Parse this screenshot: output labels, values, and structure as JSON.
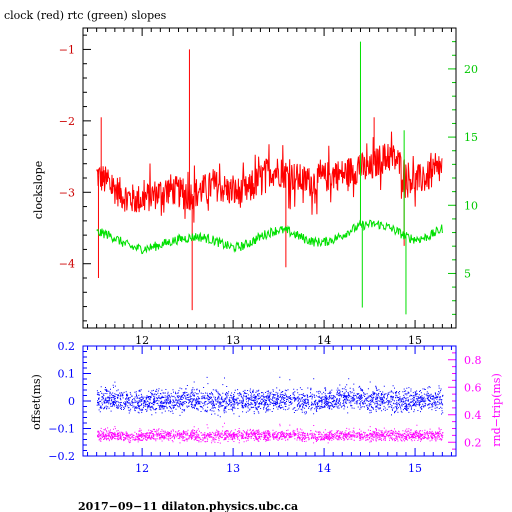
{
  "chart_data": [
    {
      "type": "line",
      "title": "clock (red) rtc (green) slopes",
      "xlabel": "",
      "ylabel": "clockslope",
      "xlim": [
        11.35,
        15.45
      ],
      "ylim": [
        -4.9,
        -0.7
      ],
      "ylim_right": [
        1.0,
        23.0
      ],
      "x_ticks": [
        12,
        13,
        14,
        15
      ],
      "x_tick_labels": [
        "12",
        "13",
        "14",
        "15"
      ],
      "y_ticks": [
        -4,
        -3,
        -2,
        -1
      ],
      "y_tick_labels": [
        "−4",
        "−3",
        "−2",
        "−1"
      ],
      "y_ticks_right": [
        5,
        10,
        15,
        20
      ],
      "y_tick_labels_right": [
        "5",
        "10",
        "15",
        "20"
      ],
      "colors": {
        "frame": "#000000",
        "clock": "#ff0000",
        "rtc": "#00e000",
        "right_axis": "#00c800"
      },
      "series": [
        {
          "name": "clock",
          "axis": "left",
          "x": [
            11.5,
            11.6,
            11.7,
            11.8,
            11.9,
            12.0,
            12.1,
            12.2,
            12.3,
            12.4,
            12.5,
            12.6,
            12.7,
            12.8,
            12.9,
            13.0,
            13.1,
            13.2,
            13.3,
            13.4,
            13.5,
            13.6,
            13.7,
            13.8,
            13.9,
            14.0,
            14.1,
            14.2,
            14.3,
            14.4,
            14.5,
            14.6,
            14.7,
            14.8,
            14.9,
            15.0,
            15.1,
            15.2,
            15.3
          ],
          "y": [
            -2.75,
            -2.85,
            -2.95,
            -3.05,
            -3.1,
            -3.1,
            -3.05,
            -3.0,
            -2.95,
            -3.0,
            -3.05,
            -3.0,
            -2.95,
            -2.9,
            -2.95,
            -3.0,
            -3.0,
            -2.95,
            -2.8,
            -2.7,
            -2.7,
            -2.75,
            -2.8,
            -2.85,
            -2.85,
            -2.8,
            -2.75,
            -2.75,
            -2.7,
            -2.65,
            -2.7,
            -2.55,
            -2.5,
            -2.55,
            -2.75,
            -2.85,
            -2.8,
            -2.75,
            -2.65
          ],
          "spikes": [
            {
              "x": 11.52,
              "y": -4.2
            },
            {
              "x": 11.55,
              "y": -1.95
            },
            {
              "x": 12.52,
              "y": -1.0
            },
            {
              "x": 12.55,
              "y": -4.65
            },
            {
              "x": 13.58,
              "y": -4.05
            },
            {
              "x": 14.55,
              "y": -1.95
            },
            {
              "x": 14.88,
              "y": -3.75
            }
          ]
        },
        {
          "name": "rtc",
          "axis": "right",
          "x": [
            11.5,
            11.6,
            11.7,
            11.8,
            11.9,
            12.0,
            12.1,
            12.2,
            12.3,
            12.4,
            12.5,
            12.6,
            12.7,
            12.8,
            12.9,
            13.0,
            13.1,
            13.2,
            13.3,
            13.4,
            13.5,
            13.6,
            13.7,
            13.8,
            13.9,
            14.0,
            14.1,
            14.2,
            14.3,
            14.4,
            14.5,
            14.6,
            14.7,
            14.8,
            14.9,
            15.0,
            15.1,
            15.2,
            15.3
          ],
          "y": [
            8.0,
            7.9,
            7.6,
            7.2,
            6.9,
            6.8,
            6.9,
            7.1,
            7.3,
            7.5,
            7.6,
            7.7,
            7.6,
            7.4,
            7.1,
            6.9,
            7.0,
            7.3,
            7.7,
            8.0,
            8.2,
            8.1,
            7.8,
            7.5,
            7.3,
            7.3,
            7.5,
            7.8,
            8.2,
            8.5,
            8.6,
            8.6,
            8.4,
            8.1,
            7.7,
            7.5,
            7.6,
            7.9,
            8.3
          ],
          "spikes": [
            {
              "x": 14.4,
              "y": 22.0
            },
            {
              "x": 14.42,
              "y": 2.5
            },
            {
              "x": 14.88,
              "y": 15.5
            },
            {
              "x": 14.9,
              "y": 2.0
            }
          ]
        }
      ]
    },
    {
      "type": "scatter",
      "title": "",
      "xlabel": "",
      "ylabel": "offset(ms)",
      "ylabel_right": "rnd−trip(ms)",
      "xlim": [
        11.35,
        15.45
      ],
      "ylim": [
        -0.2,
        0.2
      ],
      "ylim_right": [
        0.1,
        0.9
      ],
      "x_ticks": [
        12,
        13,
        14,
        15
      ],
      "x_tick_labels": [
        "12",
        "13",
        "14",
        "15"
      ],
      "y_ticks": [
        -0.2,
        -0.1,
        0,
        0.1,
        0.2
      ],
      "y_tick_labels": [
        "−0.2",
        "−0.1",
        "0",
        "0.1",
        "0.2"
      ],
      "y_ticks_right": [
        0.2,
        0.4,
        0.6,
        0.8
      ],
      "y_tick_labels_right": [
        "0.2",
        "0.4",
        "0.6",
        "0.8"
      ],
      "colors": {
        "frame": "#0000ff",
        "offset": "#0000ff",
        "rndtrip": "#ff00ff",
        "right_axis": "#ff00ff"
      },
      "series": [
        {
          "name": "offset",
          "axis": "left",
          "x": [
            11.5,
            11.7,
            11.9,
            12.1,
            12.3,
            12.5,
            12.7,
            12.9,
            13.1,
            13.3,
            13.5,
            13.7,
            13.9,
            14.1,
            14.3,
            14.5,
            14.7,
            14.9,
            15.1,
            15.3
          ],
          "y": [
            0.0,
            0.005,
            0.0,
            -0.005,
            0.0,
            0.005,
            0.0,
            -0.005,
            0.0,
            0.0,
            0.005,
            0.0,
            0.0,
            0.005,
            0.01,
            0.005,
            0.0,
            0.0,
            0.005,
            0.0
          ],
          "spread": 0.03
        },
        {
          "name": "rnd-trip",
          "axis": "right",
          "x": [
            11.5,
            11.7,
            11.9,
            12.1,
            12.3,
            12.5,
            12.7,
            12.9,
            13.1,
            13.3,
            13.5,
            13.7,
            13.9,
            14.1,
            14.3,
            14.5,
            14.7,
            14.9,
            15.1,
            15.3
          ],
          "y": [
            0.25,
            0.25,
            0.24,
            0.25,
            0.25,
            0.25,
            0.24,
            0.25,
            0.25,
            0.25,
            0.25,
            0.25,
            0.24,
            0.25,
            0.25,
            0.25,
            0.25,
            0.25,
            0.25,
            0.25
          ],
          "spread": 0.03
        }
      ]
    }
  ],
  "footer": "2017−09−11 dilaton.physics.ubc.ca"
}
